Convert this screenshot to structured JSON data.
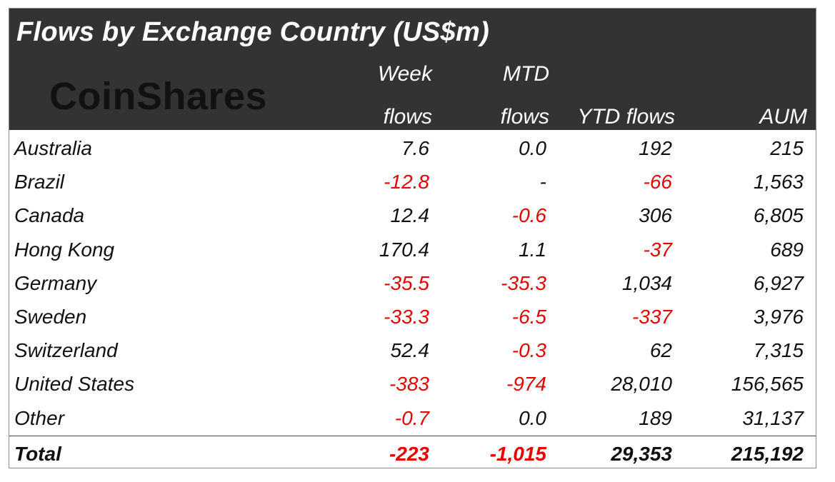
{
  "title": "Flows by Exchange Country (US$m)",
  "logo_text": "CoinShares",
  "columns": [
    {
      "key": "week",
      "line1": "Week",
      "line2": "flows"
    },
    {
      "key": "mtd",
      "line1": "MTD",
      "line2": "flows"
    },
    {
      "key": "ytd",
      "line1": "",
      "line2": "YTD flows"
    },
    {
      "key": "aum",
      "line1": "",
      "line2": "AUM"
    }
  ],
  "colors": {
    "header_bg": "#333333",
    "negative": "#e60000",
    "text": "#111111"
  },
  "chart_data": {
    "type": "table",
    "title": "Flows by Exchange Country (US$m)",
    "headers": [
      "",
      "Week flows",
      "MTD flows",
      "YTD flows",
      "AUM"
    ],
    "rows": [
      {
        "country": "Australia",
        "week": "7.6",
        "mtd": "0.0",
        "ytd": "192",
        "aum": "215"
      },
      {
        "country": "Brazil",
        "week": "-12.8",
        "mtd": "-",
        "ytd": "-66",
        "aum": "1,563"
      },
      {
        "country": "Canada",
        "week": "12.4",
        "mtd": "-0.6",
        "ytd": "306",
        "aum": "6,805"
      },
      {
        "country": "Hong Kong",
        "week": "170.4",
        "mtd": "1.1",
        "ytd": "-37",
        "aum": "689"
      },
      {
        "country": "Germany",
        "week": "-35.5",
        "mtd": "-35.3",
        "ytd": "1,034",
        "aum": "6,927"
      },
      {
        "country": "Sweden",
        "week": "-33.3",
        "mtd": "-6.5",
        "ytd": "-337",
        "aum": "3,976"
      },
      {
        "country": "Switzerland",
        "week": "52.4",
        "mtd": "-0.3",
        "ytd": "62",
        "aum": "7,315"
      },
      {
        "country": "United States",
        "week": "-383",
        "mtd": "-974",
        "ytd": "28,010",
        "aum": "156,565"
      },
      {
        "country": "Other",
        "week": "-0.7",
        "mtd": "0.0",
        "ytd": "189",
        "aum": "31,137"
      }
    ],
    "total": {
      "country": "Total",
      "week": "-223",
      "mtd": "-1,015",
      "ytd": "29,353",
      "aum": "215,192"
    }
  }
}
